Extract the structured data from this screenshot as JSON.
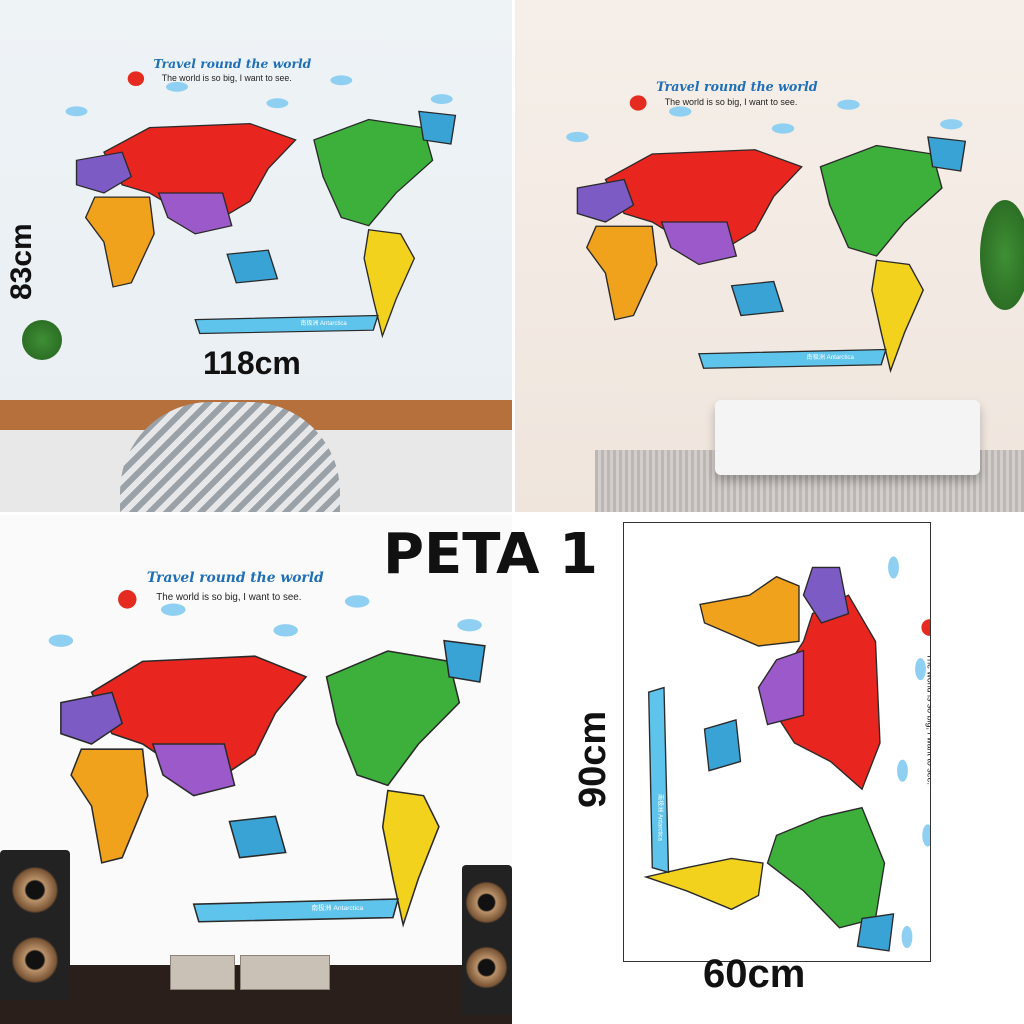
{
  "map_title": "Travel round the world",
  "map_subtitle": "The world is so big, I want to see.",
  "antarctica_label": "南极洲 Antarctica",
  "product_name": "PETA 1",
  "dimensions": {
    "room_height": "83cm",
    "room_width": "118cm",
    "sheet_height": "90cm",
    "sheet_width": "60cm"
  },
  "colors": {
    "title": "#1f6fb8",
    "eurasia": "#e8261f",
    "north_america": "#3cb03a",
    "south_america": "#f2d21d",
    "africa": "#f0a21c",
    "australia": "#3aa3d6",
    "antarctica": "#5fc4ec",
    "sun": "#e52b1f"
  }
}
